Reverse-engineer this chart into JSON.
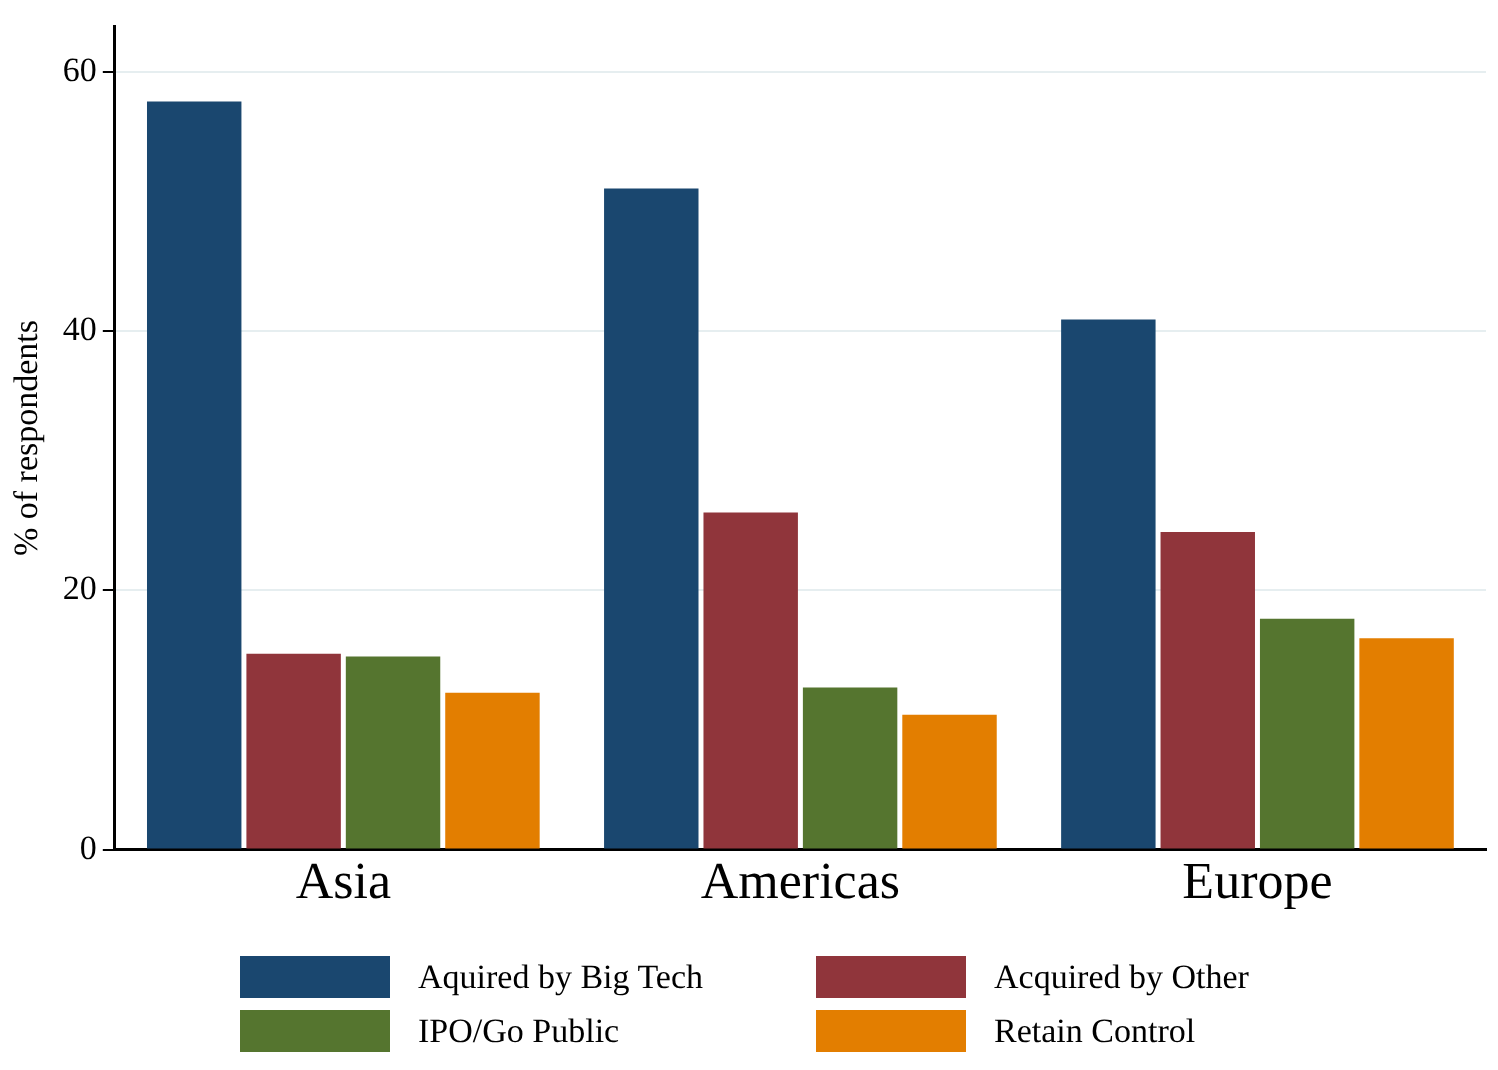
{
  "chart_data": {
    "type": "bar",
    "ylabel": "% of respondents",
    "categories": [
      "Asia",
      "Americas",
      "Europe"
    ],
    "series": [
      {
        "name": "Aquired by Big Tech",
        "color": "#1a476f",
        "values": [
          57.7,
          51.0,
          40.9
        ]
      },
      {
        "name": "Acquired by Other",
        "color": "#90353b",
        "values": [
          15.1,
          26.0,
          24.5
        ]
      },
      {
        "name": "IPO/Go Public",
        "color": "#55752f",
        "values": [
          14.9,
          12.5,
          17.8
        ]
      },
      {
        "name": "Retain Control",
        "color": "#e37e00",
        "values": [
          12.1,
          10.4,
          16.3
        ]
      }
    ],
    "ylim": [
      0,
      63.5
    ],
    "yticks": [
      0,
      20,
      40,
      60
    ],
    "grid": "y",
    "legend": "bottom"
  }
}
